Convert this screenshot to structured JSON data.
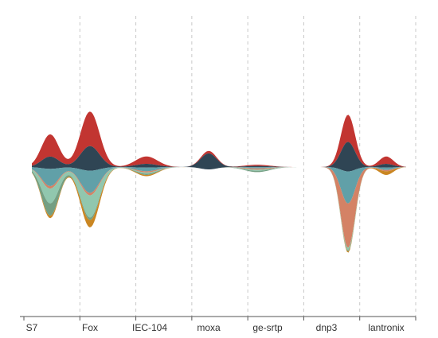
{
  "chart_data": {
    "type": "area",
    "subtype": "themeriver",
    "categories": [
      "S7",
      "Fox",
      "IEC-104",
      "moxa",
      "ge-srtp",
      "dnp3",
      "lantronix"
    ],
    "grid": true,
    "legend": "none",
    "series": [
      {
        "color": "#c23531",
        "values": [
          [
            0,
            18
          ],
          [
            1,
            28
          ],
          [
            2,
            6
          ],
          [
            3,
            2
          ],
          [
            4,
            1
          ],
          [
            5,
            22
          ],
          [
            6,
            6
          ]
        ]
      },
      {
        "color": "#2f4554",
        "values": [
          [
            0,
            10
          ],
          [
            1,
            20
          ],
          [
            2,
            3
          ],
          [
            3,
            13
          ],
          [
            4,
            1
          ],
          [
            5,
            24
          ],
          [
            6,
            3
          ]
        ]
      },
      {
        "color": "#61a0a8",
        "values": [
          [
            0,
            14
          ],
          [
            1,
            18
          ],
          [
            2,
            3
          ],
          [
            3,
            0
          ],
          [
            4,
            1
          ],
          [
            5,
            26
          ],
          [
            6,
            2
          ]
        ]
      },
      {
        "color": "#d48265",
        "values": [
          [
            0,
            2
          ],
          [
            1,
            2
          ],
          [
            2,
            1
          ],
          [
            3,
            0
          ],
          [
            4,
            1
          ],
          [
            5,
            36
          ],
          [
            6,
            1
          ]
        ]
      },
      {
        "color": "#91c7ae",
        "values": [
          [
            0,
            12
          ],
          [
            1,
            18
          ],
          [
            2,
            1
          ],
          [
            3,
            0
          ],
          [
            4,
            1
          ],
          [
            5,
            2
          ],
          [
            6,
            0
          ]
        ]
      },
      {
        "color": "#749f83",
        "values": [
          [
            0,
            10
          ],
          [
            1,
            2
          ],
          [
            2,
            1
          ],
          [
            3,
            0
          ],
          [
            4,
            1
          ],
          [
            5,
            1
          ],
          [
            6,
            0
          ]
        ]
      },
      {
        "color": "#ca8622",
        "values": [
          [
            0,
            2
          ],
          [
            1,
            6
          ],
          [
            2,
            1
          ],
          [
            3,
            0
          ],
          [
            4,
            0
          ],
          [
            5,
            1
          ],
          [
            6,
            3
          ]
        ]
      }
    ]
  }
}
